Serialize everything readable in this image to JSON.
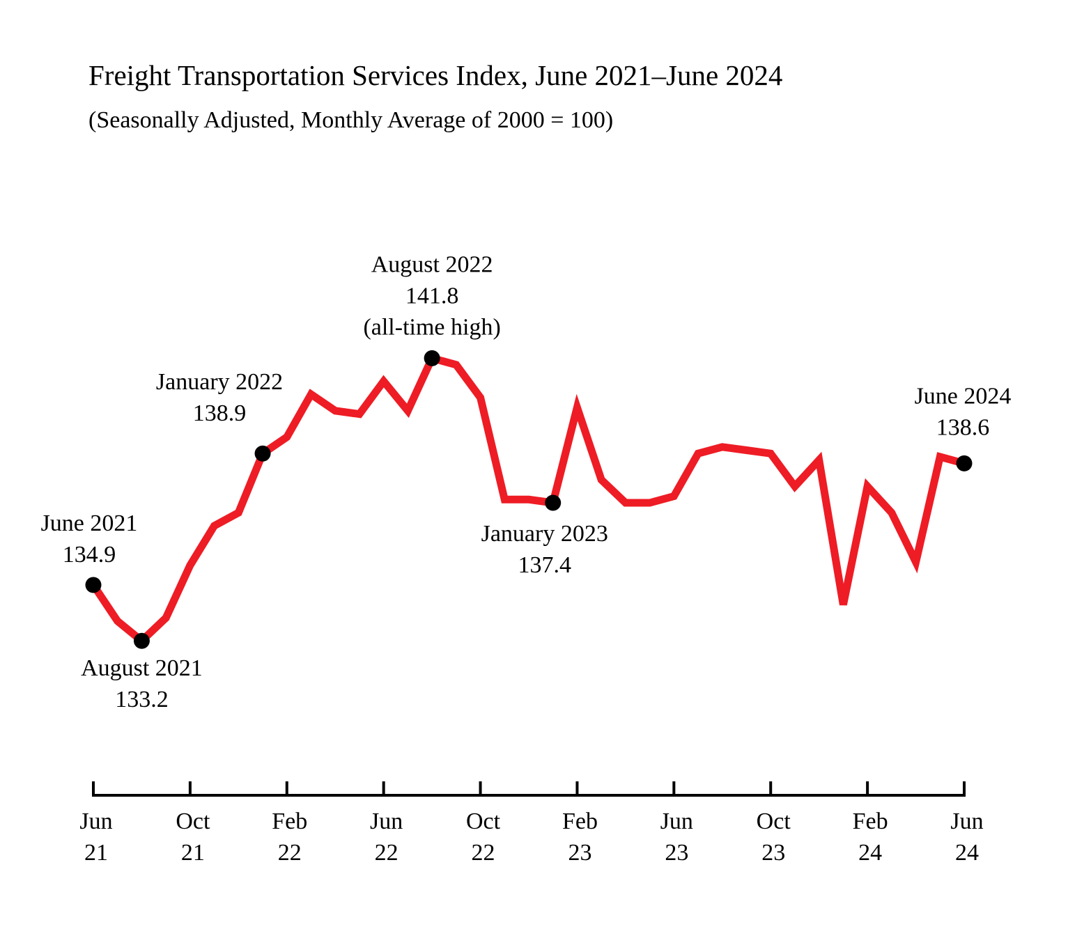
{
  "chart_data": {
    "type": "line",
    "title": "Freight Transportation Services Index, June 2021–June 2024",
    "subtitle": "(Seasonally Adjusted, Monthly Average of 2000 = 100)",
    "xlabel": "",
    "ylabel": "",
    "y_range": [
      132,
      143
    ],
    "grid": false,
    "legend": "none",
    "x": [
      "2021-06",
      "2021-07",
      "2021-08",
      "2021-09",
      "2021-10",
      "2021-11",
      "2021-12",
      "2022-01",
      "2022-02",
      "2022-03",
      "2022-04",
      "2022-05",
      "2022-06",
      "2022-07",
      "2022-08",
      "2022-09",
      "2022-10",
      "2022-11",
      "2022-12",
      "2023-01",
      "2023-02",
      "2023-03",
      "2023-04",
      "2023-05",
      "2023-06",
      "2023-07",
      "2023-08",
      "2023-09",
      "2023-10",
      "2023-11",
      "2023-12",
      "2024-01",
      "2024-02",
      "2024-03",
      "2024-04",
      "2024-05",
      "2024-06"
    ],
    "series": [
      {
        "name": "",
        "color": "#ee1c25",
        "values": [
          134.9,
          133.8,
          133.2,
          133.9,
          135.5,
          136.7,
          137.1,
          138.9,
          139.4,
          140.7,
          140.2,
          140.1,
          141.1,
          140.2,
          141.8,
          141.6,
          140.6,
          137.5,
          137.5,
          137.4,
          140.3,
          138.1,
          137.4,
          137.4,
          137.6,
          138.9,
          139.1,
          139.0,
          138.9,
          137.9,
          138.7,
          134.3,
          137.9,
          137.1,
          135.6,
          138.8,
          138.6
        ]
      }
    ],
    "x_ticks": [
      {
        "month": "Jun",
        "year": "21"
      },
      {
        "month": "Oct",
        "year": "21"
      },
      {
        "month": "Feb",
        "year": "22"
      },
      {
        "month": "Jun",
        "year": "22"
      },
      {
        "month": "Oct",
        "year": "22"
      },
      {
        "month": "Feb",
        "year": "23"
      },
      {
        "month": "Jun",
        "year": "23"
      },
      {
        "month": "Oct",
        "year": "23"
      },
      {
        "month": "Feb",
        "year": "24"
      },
      {
        "month": "Jun",
        "year": "24"
      }
    ],
    "annotations": [
      {
        "date": "2021-06",
        "label": "June 2021",
        "value": "134.9",
        "note": ""
      },
      {
        "date": "2021-08",
        "label": "August 2021",
        "value": "133.2",
        "note": ""
      },
      {
        "date": "2022-01",
        "label": "January 2022",
        "value": "138.9",
        "note": ""
      },
      {
        "date": "2022-08",
        "label": "August 2022",
        "value": "141.8",
        "note": "(all-time high)"
      },
      {
        "date": "2023-01",
        "label": "January 2023",
        "value": "137.4",
        "note": ""
      },
      {
        "date": "2024-06",
        "label": "June 2024",
        "value": "138.6",
        "note": ""
      }
    ]
  }
}
